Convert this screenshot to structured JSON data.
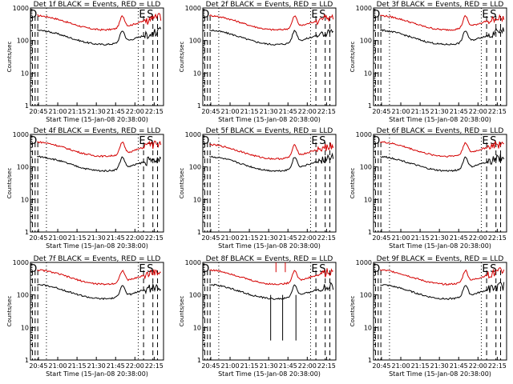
{
  "chart_data": [
    {
      "type": "line",
      "title": "Det 1f BLACK = Events, RED = LLD",
      "xlabel": "Start Time (15-Jan-08 20:38:00)",
      "ylabel": "Counts/sec",
      "yscale": "log",
      "ylim": [
        1,
        1000
      ],
      "xlim": [
        20.633,
        22.283
      ],
      "x_ticks": [
        "20:45",
        "21:00",
        "21:15",
        "21:30",
        "21:45",
        "22:00",
        "22:15"
      ],
      "y_ticks": [
        "1",
        "10",
        "100",
        "1000"
      ],
      "markers": [
        "D",
        "E",
        "S"
      ],
      "series": [
        {
          "color": "#d40000",
          "description": "LLD rate, ~200-400 counts/sec"
        },
        {
          "color": "#000000",
          "description": "Events rate, ~40-100 counts/sec"
        }
      ]
    },
    {
      "type": "line",
      "title": "Det 2f BLACK = Events, RED = LLD",
      "xlabel": "Start Time (15-Jan-08 20:38:00)",
      "ylabel": "Counts/sec",
      "yscale": "log",
      "ylim": [
        1,
        1000
      ],
      "xlim": [
        20.633,
        22.283
      ],
      "x_ticks": [
        "20:45",
        "21:00",
        "21:15",
        "21:30",
        "21:45",
        "22:00",
        "22:15"
      ],
      "y_ticks": [
        "1",
        "10",
        "100",
        "1000"
      ],
      "markers": [
        "D",
        "E",
        "S"
      ],
      "series": [
        {
          "color": "#d40000",
          "description": "LLD rate"
        },
        {
          "color": "#000000",
          "description": "Events rate"
        }
      ]
    },
    {
      "type": "line",
      "title": "Det 3f BLACK = Events, RED = LLD",
      "xlabel": "Start Time (15-Jan-08 20:38:00)",
      "ylabel": "Counts/sec",
      "yscale": "log",
      "ylim": [
        1,
        1000
      ],
      "xlim": [
        20.633,
        22.283
      ],
      "x_ticks": [
        "20:45",
        "21:00",
        "21:15",
        "21:30",
        "21:45",
        "22:00",
        "22:15"
      ],
      "y_ticks": [
        "1",
        "10",
        "100",
        "1000"
      ],
      "markers": [
        "D",
        "E",
        "S"
      ],
      "series": [
        {
          "color": "#d40000",
          "description": "LLD rate"
        },
        {
          "color": "#000000",
          "description": "Events rate"
        }
      ]
    },
    {
      "type": "line",
      "title": "Det 4f BLACK = Events, RED = LLD",
      "xlabel": "Start Time (15-Jan-08 20:38:00)",
      "ylabel": "Counts/sec",
      "yscale": "log",
      "ylim": [
        1,
        1000
      ],
      "xlim": [
        20.633,
        22.283
      ],
      "x_ticks": [
        "20:45",
        "21:00",
        "21:15",
        "21:30",
        "21:45",
        "22:00",
        "22:15"
      ],
      "y_ticks": [
        "1",
        "10",
        "100",
        "1000"
      ],
      "markers": [
        "D",
        "E",
        "S"
      ],
      "series": [
        {
          "color": "#d40000",
          "description": "LLD rate"
        },
        {
          "color": "#000000",
          "description": "Events rate"
        }
      ]
    },
    {
      "type": "line",
      "title": "Det 5f BLACK = Events, RED = LLD",
      "xlabel": "Start Time (15-Jan-08 20:38:00)",
      "ylabel": "Counts/sec",
      "yscale": "log",
      "ylim": [
        1,
        1000
      ],
      "xlim": [
        20.633,
        22.283
      ],
      "x_ticks": [
        "20:45",
        "21:00",
        "21:15",
        "21:30",
        "21:45",
        "22:00",
        "22:15"
      ],
      "y_ticks": [
        "1",
        "10",
        "100",
        "1000"
      ],
      "markers": [
        "D",
        "E",
        "S"
      ],
      "series": [
        {
          "color": "#d40000",
          "description": "LLD rate"
        },
        {
          "color": "#000000",
          "description": "Events rate"
        }
      ]
    },
    {
      "type": "line",
      "title": "Det 6f BLACK = Events, RED = LLD",
      "xlabel": "Start Time (15-Jan-08 20:38:00)",
      "ylabel": "Counts/sec",
      "yscale": "log",
      "ylim": [
        1,
        1000
      ],
      "xlim": [
        20.633,
        22.283
      ],
      "x_ticks": [
        "20:45",
        "21:00",
        "21:15",
        "21:30",
        "21:45",
        "22:00",
        "22:15"
      ],
      "y_ticks": [
        "1",
        "10",
        "100",
        "1000"
      ],
      "markers": [
        "D",
        "E",
        "S"
      ],
      "series": [
        {
          "color": "#d40000",
          "description": "LLD rate"
        },
        {
          "color": "#000000",
          "description": "Events rate"
        }
      ]
    },
    {
      "type": "line",
      "title": "Det 7f BLACK = Events, RED = LLD",
      "xlabel": "Start Time (15-Jan-08 20:38:00)",
      "ylabel": "Counts/sec",
      "yscale": "log",
      "ylim": [
        1,
        1000
      ],
      "xlim": [
        20.633,
        22.283
      ],
      "x_ticks": [
        "20:45",
        "21:00",
        "21:15",
        "21:30",
        "21:45",
        "22:00",
        "22:15"
      ],
      "y_ticks": [
        "1",
        "10",
        "100",
        "1000"
      ],
      "markers": [
        "D",
        "E",
        "S"
      ],
      "series": [
        {
          "color": "#d40000",
          "description": "LLD rate"
        },
        {
          "color": "#000000",
          "description": "Events rate"
        }
      ]
    },
    {
      "type": "line",
      "title": "Det 8f BLACK = Events, RED = LLD",
      "xlabel": "Start Time (15-Jan-08 20:38:00)",
      "ylabel": "Counts/sec",
      "yscale": "log",
      "ylim": [
        1,
        1000
      ],
      "xlim": [
        20.633,
        22.283
      ],
      "x_ticks": [
        "20:45",
        "21:00",
        "21:15",
        "21:30",
        "21:45",
        "22:00",
        "22:15"
      ],
      "y_ticks": [
        "1",
        "10",
        "100",
        "1000"
      ],
      "markers": [
        "D",
        "E",
        "S"
      ],
      "series": [
        {
          "color": "#d40000",
          "description": "LLD rate, spikes above plot range"
        },
        {
          "color": "#000000",
          "description": "Events rate with drop-outs"
        }
      ]
    },
    {
      "type": "line",
      "title": "Det 9f BLACK = Events, RED = LLD",
      "xlabel": "Start Time (15-Jan-08 20:38:00)",
      "ylabel": "Counts/sec",
      "yscale": "log",
      "ylim": [
        1,
        1000
      ],
      "xlim": [
        20.633,
        22.283
      ],
      "x_ticks": [
        "20:45",
        "21:00",
        "21:15",
        "21:30",
        "21:45",
        "22:00",
        "22:15"
      ],
      "y_ticks": [
        "1",
        "10",
        "100",
        "1000"
      ],
      "markers": [
        "D",
        "E",
        "S"
      ],
      "series": [
        {
          "color": "#d40000",
          "description": "LLD rate"
        },
        {
          "color": "#000000",
          "description": "Events rate"
        }
      ]
    }
  ]
}
